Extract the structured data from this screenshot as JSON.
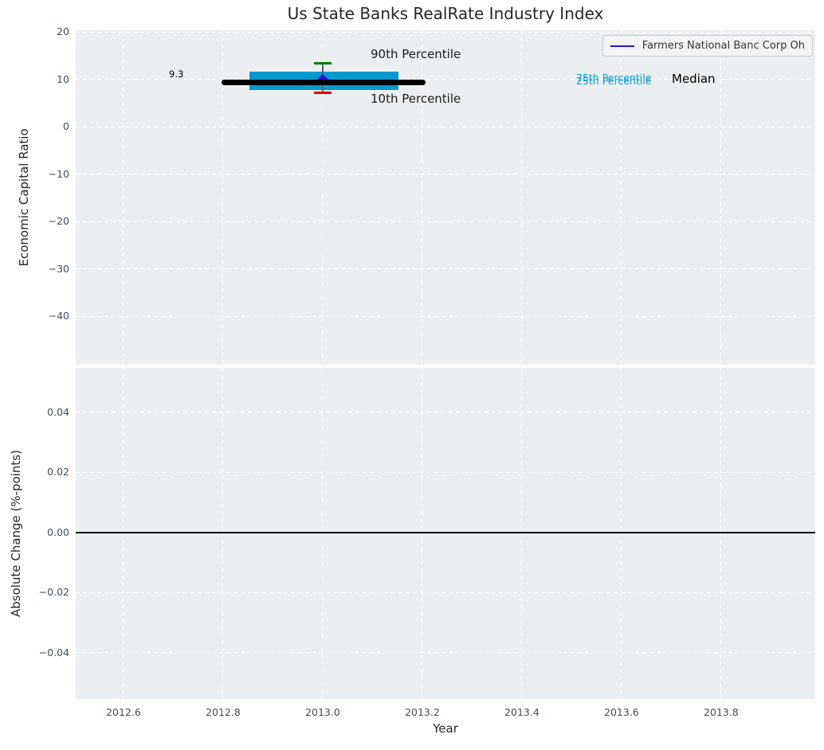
{
  "chart_data": [
    {
      "type": "box-whisker-timeline",
      "title": "Us State Banks RealRate Industry Index",
      "ylabel": "Economic Capital Ratio",
      "xlabel": "",
      "grid": true,
      "legend": [
        {
          "label": "Farmers National Banc Corp Oh",
          "color": "#1a1add"
        }
      ],
      "legend_position": "upper right",
      "xlim": [
        2012.504,
        2013.989
      ],
      "ylim": [
        -50.25,
        20.34
      ],
      "xticks": [
        2012.6,
        2012.8,
        2013.0,
        2013.2,
        2013.4,
        2013.6,
        2013.8
      ],
      "xtick_labels": [
        "",
        "",
        "",
        "",
        "",
        "",
        ""
      ],
      "yticks": [
        20,
        10,
        0,
        -10,
        -20,
        -30,
        -40
      ],
      "ytick_labels": [
        "20",
        "10",
        "0",
        "−10",
        "−20",
        "−30",
        "−40"
      ],
      "points": [
        {
          "x": 2013.0,
          "median": 9.3,
          "p25": 7.7,
          "p75": 11.6,
          "p10": 7.2,
          "p90": 13.4,
          "company_value": 9.9,
          "median_line_span": [
            2012.797,
            2013.206
          ],
          "box_span": [
            2012.853,
            2013.152
          ]
        }
      ],
      "annotations": {
        "p90_label": "90th Percentile",
        "p10_label": "10th Percentile",
        "p75_label": "75th Percentile",
        "p25_label": "25th Percentile",
        "median_label": "Median",
        "median_value_label": "9.3"
      },
      "colors": {
        "box": "#009ad0",
        "median_line": "#000000",
        "p90_cap": "#007d00",
        "p10_cap": "#e6000a",
        "whisker": "#5f6468",
        "company_marker": "#2412d9",
        "axes_background": "#eceff1",
        "grid": "#ffffff"
      }
    },
    {
      "type": "line",
      "title": "",
      "ylabel": "Absolute Change (%-points)",
      "xlabel": "Year",
      "grid": true,
      "xlim": [
        2012.504,
        2013.989
      ],
      "ylim": [
        -0.0554,
        0.0548
      ],
      "xticks": [
        2012.6,
        2012.8,
        2013.0,
        2013.2,
        2013.4,
        2013.6,
        2013.8
      ],
      "xtick_labels": [
        "2012.6",
        "2012.8",
        "2013.0",
        "2013.2",
        "2013.4",
        "2013.6",
        "2013.8"
      ],
      "yticks": [
        0.04,
        0.02,
        0,
        -0.02,
        -0.04
      ],
      "ytick_labels": [
        "0.04",
        "0.02",
        "0.00",
        "−0.02",
        "−0.04"
      ],
      "series": [
        {
          "name": "zero-reference-line",
          "y": 0.0,
          "color": "#000000",
          "style": "solid-horizontal"
        }
      ]
    }
  ]
}
